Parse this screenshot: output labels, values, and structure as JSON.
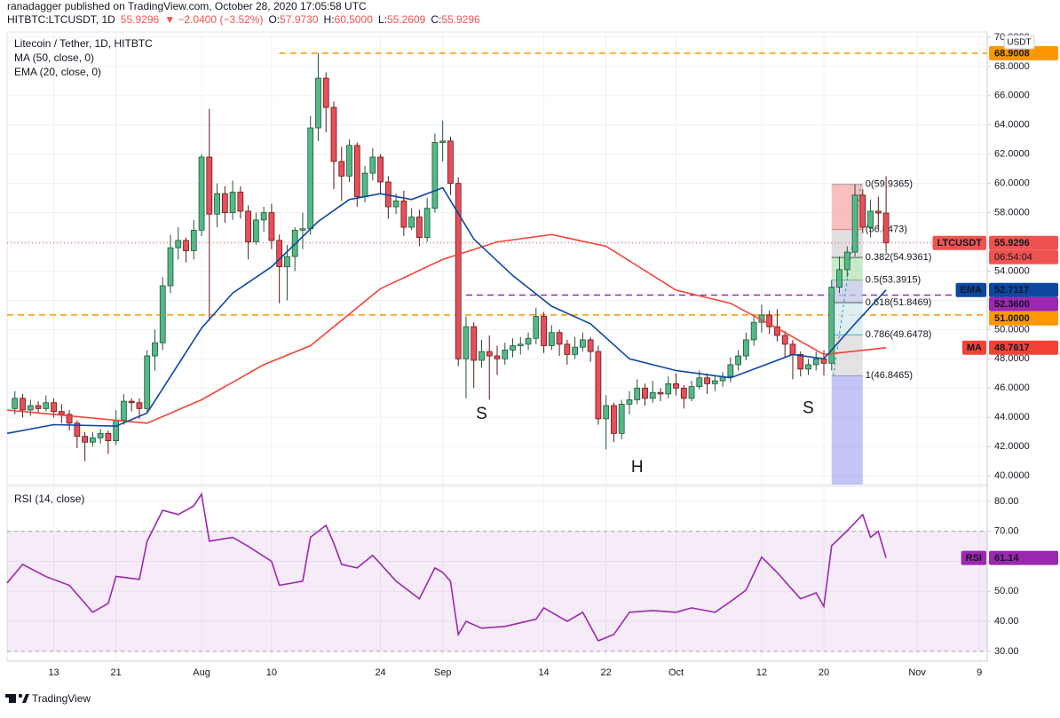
{
  "header": {
    "byline": "ranadagger published on TradingView.com, October 28, 2020 17:05:58 UTC",
    "symbol": "HITBTC:LTCUSDT, 1D",
    "price": "55.9296",
    "change": "▼ −2.0400 (−3.52%)",
    "ohlc": [
      {
        "key": "O:",
        "value": "57.9730"
      },
      {
        "key": "H:",
        "value": "60.5000"
      },
      {
        "key": "L:",
        "value": "55.2609"
      },
      {
        "key": "C:",
        "value": "55.9296"
      }
    ]
  },
  "footer": {
    "brand": "TradingView"
  },
  "chart_data": [
    {
      "type": "candlestick",
      "title": "Litecoin / Tether, 1D, HITBTC",
      "currency": "USDT",
      "symbol_badge": "LTCUSDT",
      "countdown": "06:54:04",
      "last_color": "#ef5350",
      "up_color": "#53b987",
      "down_color": "#eb4d5c",
      "up_border": "#225437",
      "down_border": "#5b1a13",
      "grid": true,
      "xlim": [
        "2020-07-07",
        "2020-11-10"
      ],
      "xticks": [
        {
          "value": "2020-07-13",
          "label": "13"
        },
        {
          "value": "2020-07-21",
          "label": "21"
        },
        {
          "value": "2020-08-01",
          "label": "Aug"
        },
        {
          "value": "2020-08-10",
          "label": "10"
        },
        {
          "value": "2020-08-24",
          "label": "24"
        },
        {
          "value": "2020-09-01",
          "label": "Sep"
        },
        {
          "value": "2020-09-14",
          "label": "14"
        },
        {
          "value": "2020-09-22",
          "label": "22"
        },
        {
          "value": "2020-10-01",
          "label": "Oct"
        },
        {
          "value": "2020-10-12",
          "label": "12"
        },
        {
          "value": "2020-10-20",
          "label": "20"
        },
        {
          "value": "2020-11-01",
          "label": "Nov"
        },
        {
          "value": "2020-11-09",
          "label": "9"
        }
      ],
      "ylim": [
        39.4,
        70.36
      ],
      "yticks": [
        {
          "value": 40,
          "label": "40.0000"
        },
        {
          "value": 42,
          "label": "42.0000"
        },
        {
          "value": 44,
          "label": "44.0000"
        },
        {
          "value": 46,
          "label": "46.0000"
        },
        {
          "value": 48,
          "label": "48.0000"
        },
        {
          "value": 50,
          "label": "50.0000"
        },
        {
          "value": 52,
          "label": "52.0000"
        },
        {
          "value": 54,
          "label": "54.0000"
        },
        {
          "value": 56,
          "label": "56.0000"
        },
        {
          "value": 58,
          "label": "58.0000"
        },
        {
          "value": 60,
          "label": "60.0000"
        },
        {
          "value": 62,
          "label": "62.0000"
        },
        {
          "value": 64,
          "label": "64.0000"
        },
        {
          "value": 66,
          "label": "66.0000"
        },
        {
          "value": 68,
          "label": "68.0000"
        },
        {
          "value": 70,
          "label": "70.0000"
        }
      ],
      "x": [
        "2020-07-08",
        "2020-07-09",
        "2020-07-10",
        "2020-07-11",
        "2020-07-12",
        "2020-07-13",
        "2020-07-14",
        "2020-07-15",
        "2020-07-16",
        "2020-07-17",
        "2020-07-18",
        "2020-07-19",
        "2020-07-20",
        "2020-07-21",
        "2020-07-22",
        "2020-07-23",
        "2020-07-24",
        "2020-07-25",
        "2020-07-26",
        "2020-07-27",
        "2020-07-28",
        "2020-07-29",
        "2020-07-30",
        "2020-07-31",
        "2020-08-01",
        "2020-08-02",
        "2020-08-03",
        "2020-08-04",
        "2020-08-05",
        "2020-08-06",
        "2020-08-07",
        "2020-08-08",
        "2020-08-09",
        "2020-08-10",
        "2020-08-11",
        "2020-08-12",
        "2020-08-13",
        "2020-08-14",
        "2020-08-15",
        "2020-08-16",
        "2020-08-17",
        "2020-08-18",
        "2020-08-19",
        "2020-08-20",
        "2020-08-21",
        "2020-08-22",
        "2020-08-23",
        "2020-08-24",
        "2020-08-25",
        "2020-08-26",
        "2020-08-27",
        "2020-08-28",
        "2020-08-29",
        "2020-08-30",
        "2020-08-31",
        "2020-09-01",
        "2020-09-02",
        "2020-09-03",
        "2020-09-04",
        "2020-09-05",
        "2020-09-06",
        "2020-09-07",
        "2020-09-08",
        "2020-09-09",
        "2020-09-10",
        "2020-09-11",
        "2020-09-12",
        "2020-09-13",
        "2020-09-14",
        "2020-09-15",
        "2020-09-16",
        "2020-09-17",
        "2020-09-18",
        "2020-09-19",
        "2020-09-20",
        "2020-09-21",
        "2020-09-22",
        "2020-09-23",
        "2020-09-24",
        "2020-09-25",
        "2020-09-26",
        "2020-09-27",
        "2020-09-28",
        "2020-09-29",
        "2020-09-30",
        "2020-10-01",
        "2020-10-02",
        "2020-10-03",
        "2020-10-04",
        "2020-10-05",
        "2020-10-06",
        "2020-10-07",
        "2020-10-08",
        "2020-10-09",
        "2020-10-10",
        "2020-10-11",
        "2020-10-12",
        "2020-10-13",
        "2020-10-14",
        "2020-10-15",
        "2020-10-16",
        "2020-10-17",
        "2020-10-18",
        "2020-10-19",
        "2020-10-20",
        "2020-10-21",
        "2020-10-22",
        "2020-10-23",
        "2020-10-24",
        "2020-10-25",
        "2020-10-26",
        "2020-10-27",
        "2020-10-28"
      ],
      "open": [
        44.6,
        45.3,
        44.5,
        44.8,
        44.6,
        45.0,
        44.4,
        44.2,
        43.6,
        42.7,
        42.3,
        42.6,
        42.9,
        42.4,
        43.8,
        45.1,
        45.0,
        44.6,
        48.2,
        49.1,
        53.0,
        55.6,
        56.1,
        55.4,
        56.8,
        61.8,
        57.9,
        59.3,
        58.0,
        59.4,
        58.1,
        56.0,
        57.5,
        58.0,
        56.1,
        54.3,
        55.0,
        56.8,
        56.9,
        63.8,
        67.2,
        65.2,
        61.5,
        60.5,
        62.6,
        59.1,
        60.7,
        61.8,
        60.1,
        58.4,
        58.8,
        57.0,
        57.7,
        56.3,
        58.3,
        62.8,
        62.9,
        60.0,
        48.0,
        50.2,
        47.9,
        48.5,
        48.2,
        48.0,
        48.6,
        48.9,
        49.0,
        49.4,
        50.9,
        48.9,
        49.8,
        49.0,
        48.3,
        48.8,
        49.3,
        48.5,
        43.9,
        44.8,
        42.9,
        44.9,
        45.2,
        46.0,
        45.3,
        45.7,
        45.6,
        46.3,
        46.0,
        45.3,
        46.1,
        46.7,
        46.3,
        46.5,
        46.8,
        47.6,
        48.2,
        49.3,
        50.5,
        51.0,
        50.2,
        49.6,
        49.0,
        48.3,
        47.3,
        47.6,
        48.0,
        47.7,
        52.9,
        54.1,
        55.3,
        59.2,
        57.0,
        58.1,
        57.973
      ],
      "high": [
        45.8,
        45.6,
        45.2,
        45.1,
        45.5,
        45.3,
        44.9,
        44.5,
        43.8,
        43.0,
        43.0,
        43.2,
        43.1,
        44.5,
        45.6,
        45.3,
        45.3,
        48.6,
        50.0,
        53.6,
        56.5,
        57.0,
        56.3,
        57.5,
        62.0,
        65.1,
        60.0,
        59.8,
        60.2,
        59.8,
        58.5,
        58.0,
        58.4,
        58.6,
        56.5,
        55.8,
        57.0,
        58.0,
        64.6,
        68.9008,
        67.6,
        65.6,
        62.5,
        63.0,
        62.8,
        61.2,
        62.4,
        62.0,
        60.5,
        59.3,
        59.5,
        58.3,
        58.2,
        59.0,
        63.4,
        64.3,
        63.2,
        60.4,
        50.9,
        50.5,
        49.3,
        49.6,
        48.9,
        49.1,
        49.4,
        49.5,
        49.8,
        51.5,
        51.2,
        50.3,
        50.0,
        49.3,
        49.5,
        49.8,
        49.5,
        48.9,
        45.5,
        45.0,
        45.2,
        45.8,
        46.6,
        46.3,
        46.5,
        46.0,
        46.8,
        47.0,
        46.2,
        46.5,
        47.2,
        47.0,
        46.9,
        47.1,
        48.1,
        48.6,
        49.8,
        51.0,
        51.7,
        51.3,
        51.4,
        49.9,
        49.3,
        48.5,
        48.0,
        48.5,
        48.6,
        53.4,
        55.0,
        55.7,
        59.94,
        59.6,
        58.9,
        59.1,
        60.5
      ],
      "low": [
        44.2,
        44.0,
        44.1,
        44.3,
        44.4,
        44.0,
        43.6,
        43.1,
        41.9,
        41.0,
        42.0,
        42.2,
        41.5,
        42.1,
        43.5,
        44.4,
        43.9,
        44.3,
        47.2,
        48.6,
        52.5,
        54.8,
        54.6,
        54.8,
        56.4,
        50.6,
        57.0,
        57.3,
        57.5,
        57.6,
        54.8,
        55.8,
        56.7,
        55.5,
        51.8,
        52.0,
        54.0,
        55.5,
        56.5,
        62.9,
        63.5,
        59.6,
        58.8,
        60.1,
        58.4,
        58.7,
        60.2,
        59.3,
        57.6,
        57.9,
        56.4,
        56.8,
        55.7,
        56.0,
        58.0,
        61.5,
        59.2,
        47.5,
        45.3,
        46.0,
        47.4,
        45.2,
        46.9,
        47.6,
        48.1,
        48.3,
        48.6,
        49.0,
        48.4,
        48.6,
        48.2,
        47.6,
        48.0,
        48.5,
        47.8,
        43.5,
        41.8,
        42.3,
        42.5,
        44.2,
        44.9,
        44.8,
        45.0,
        45.1,
        45.3,
        45.5,
        44.6,
        45.1,
        45.9,
        45.6,
        45.8,
        46.1,
        46.4,
        47.2,
        47.9,
        48.9,
        49.8,
        49.7,
        49.2,
        48.1,
        46.6,
        46.8,
        46.9,
        47.2,
        46.85,
        47.2,
        52.5,
        53.6,
        55.0,
        56.6,
        56.3,
        56.9,
        55.2609
      ],
      "close": [
        45.3,
        44.5,
        44.8,
        44.6,
        45.0,
        44.4,
        44.2,
        43.6,
        42.7,
        42.3,
        42.6,
        42.9,
        42.4,
        43.8,
        45.1,
        45.0,
        44.6,
        48.2,
        49.1,
        53.0,
        55.6,
        56.1,
        55.4,
        56.8,
        61.8,
        57.9,
        59.3,
        58.0,
        59.4,
        58.1,
        56.0,
        57.5,
        58.0,
        56.1,
        54.3,
        55.0,
        56.8,
        56.9,
        63.8,
        67.2,
        65.2,
        61.5,
        60.5,
        62.6,
        59.1,
        60.7,
        61.8,
        60.1,
        58.4,
        58.8,
        57.0,
        57.7,
        56.3,
        58.3,
        62.8,
        62.9,
        60.0,
        48.0,
        50.2,
        47.9,
        48.5,
        48.2,
        48.0,
        48.6,
        48.9,
        49.0,
        49.4,
        50.9,
        48.9,
        49.8,
        49.0,
        48.3,
        48.8,
        49.3,
        48.5,
        43.9,
        44.8,
        42.9,
        44.9,
        45.2,
        46.0,
        45.3,
        45.7,
        45.6,
        46.3,
        46.0,
        45.3,
        46.1,
        46.7,
        46.3,
        46.5,
        46.8,
        47.6,
        48.2,
        49.3,
        50.5,
        51.0,
        50.2,
        49.6,
        49.0,
        48.3,
        47.3,
        47.6,
        48.0,
        47.7,
        52.9,
        54.1,
        55.3,
        59.2,
        57.0,
        58.1,
        57.973,
        55.9296
      ],
      "series": [
        {
          "name": "MA (50, close, 0)",
          "short": "MA",
          "color": "#f44336",
          "x": [
            "2020-07-07",
            "2020-07-13",
            "2020-07-25",
            "2020-08-01",
            "2020-08-09",
            "2020-08-15",
            "2020-08-24",
            "2020-09-01",
            "2020-09-08",
            "2020-09-15",
            "2020-09-22",
            "2020-10-01",
            "2020-10-08",
            "2020-10-15",
            "2020-10-20",
            "2020-10-28"
          ],
          "values": [
            44.5,
            44.2,
            43.6,
            45.2,
            47.6,
            48.9,
            52.8,
            54.8,
            56.0,
            56.5,
            55.7,
            52.7,
            51.8,
            49.8,
            48.3,
            48.7617
          ]
        },
        {
          "name": "EMA (20, close, 0)",
          "short": "EMA",
          "color": "#0d47a1",
          "x": [
            "2020-07-07",
            "2020-07-13",
            "2020-07-21",
            "2020-07-25",
            "2020-08-01",
            "2020-08-05",
            "2020-08-10",
            "2020-08-16",
            "2020-08-20",
            "2020-08-24",
            "2020-08-28",
            "2020-09-01",
            "2020-09-05",
            "2020-09-10",
            "2020-09-15",
            "2020-09-20",
            "2020-09-25",
            "2020-10-01",
            "2020-10-08",
            "2020-10-12",
            "2020-10-16",
            "2020-10-20",
            "2020-10-24",
            "2020-10-28"
          ],
          "values": [
            42.9,
            43.5,
            43.4,
            44.3,
            50.1,
            52.5,
            54.3,
            57.4,
            58.9,
            59.3,
            58.9,
            59.7,
            56.2,
            53.7,
            51.6,
            50.4,
            48.0,
            47.2,
            46.7,
            47.5,
            48.3,
            48.0,
            50.4,
            52.7117
          ]
        }
      ],
      "hlines": [
        {
          "value": 68.9008,
          "color": "#ff9800",
          "from": "2020-08-11"
        },
        {
          "value": 52.36,
          "label": "52.3600",
          "color": "#9c27b0",
          "from": "2020-09-04"
        },
        {
          "value": 51,
          "label": "51.0000",
          "color": "#ff9800",
          "from": "2020-07-07"
        }
      ],
      "fib": {
        "from": "2020-10-21",
        "to": "2020-10-25",
        "below": "#9c9cf0",
        "levels": [
          {
            "label": "0(59.9365)",
            "value": 59.9365,
            "color": "#787b86",
            "fill": "#f7a9a9"
          },
          {
            "label": "(56.8473)",
            "value": 56.8473,
            "color": "#f7525f",
            "fill": "#d4d4d4"
          },
          {
            "label": "0.382(54.9361)",
            "value": 54.9361,
            "color": "#131722",
            "fill": "#b5e3b7"
          },
          {
            "label": "0.5(53.3915)",
            "value": 53.3915,
            "color": "#4caf50",
            "fill": "#c3c7e6"
          },
          {
            "label": "0.618(51.8469)",
            "value": 51.8469,
            "color": "#131722",
            "fill": "#d3e9f0"
          },
          {
            "label": "0.786(49.6478)",
            "value": 49.6478,
            "color": "#0097a7",
            "fill": "#dadada"
          },
          {
            "label": "1(46.8465)",
            "value": 46.8465,
            "color": "#787b86"
          }
        ]
      },
      "annotations": [
        {
          "text": "S",
          "x": "2020-09-06",
          "y": 44.2,
          "color": "#14a3a3"
        },
        {
          "text": "H",
          "x": "2020-09-26",
          "y": 40.55,
          "color": "#14a3a3"
        },
        {
          "text": "S",
          "x": "2020-10-18",
          "y": 44.6,
          "color": "#14a3a3"
        }
      ]
    },
    {
      "type": "line",
      "title": "RSI (14, close)",
      "grid": true,
      "ylim": [
        26.7,
        85
      ],
      "yticks": [
        {
          "value": 30,
          "label": "30.00"
        },
        {
          "value": 40,
          "label": "40.00"
        },
        {
          "value": 50,
          "label": "50.00"
        },
        {
          "value": 60,
          "label": "60.00"
        },
        {
          "value": 70,
          "label": "70.00"
        },
        {
          "value": 80,
          "label": "80.00"
        }
      ],
      "band": {
        "from": 30,
        "to": 70,
        "color": "#9c27b0"
      },
      "series": [
        {
          "short": "RSI",
          "color": "#9c27b0",
          "x": [
            "2020-07-07",
            "2020-07-09",
            "2020-07-12",
            "2020-07-15",
            "2020-07-18",
            "2020-07-20",
            "2020-07-21",
            "2020-07-24",
            "2020-07-25",
            "2020-07-27",
            "2020-07-29",
            "2020-07-31",
            "2020-08-01",
            "2020-08-02",
            "2020-08-05",
            "2020-08-07",
            "2020-08-10",
            "2020-08-11",
            "2020-08-14",
            "2020-08-15",
            "2020-08-17",
            "2020-08-18",
            "2020-08-19",
            "2020-08-21",
            "2020-08-23",
            "2020-08-26",
            "2020-08-29",
            "2020-08-31",
            "2020-09-01",
            "2020-09-02",
            "2020-09-03",
            "2020-09-04",
            "2020-09-06",
            "2020-09-09",
            "2020-09-13",
            "2020-09-14",
            "2020-09-17",
            "2020-09-19",
            "2020-09-21",
            "2020-09-23",
            "2020-09-25",
            "2020-09-28",
            "2020-10-01",
            "2020-10-03",
            "2020-10-06",
            "2020-10-08",
            "2020-10-10",
            "2020-10-12",
            "2020-10-14",
            "2020-10-17",
            "2020-10-19",
            "2020-10-20",
            "2020-10-21",
            "2020-10-23",
            "2020-10-25",
            "2020-10-26",
            "2020-10-27",
            "2020-10-28"
          ],
          "values": [
            52.8,
            59,
            54.9,
            52,
            43,
            46,
            55,
            54,
            66.7,
            77,
            75.6,
            78.5,
            82.4,
            66.7,
            68,
            65,
            60,
            52,
            53.4,
            68,
            72,
            66,
            59,
            57.8,
            62,
            53.4,
            47.5,
            57.8,
            56.3,
            53.4,
            35.6,
            40,
            37.7,
            38.3,
            40.7,
            44.5,
            40,
            43,
            33.5,
            35.6,
            43,
            43.6,
            43,
            44.5,
            43,
            46.6,
            50.4,
            61.4,
            56.3,
            47.5,
            49.5,
            45,
            65.2,
            70.2,
            75.6,
            68,
            70,
            61.14
          ]
        }
      ]
    }
  ]
}
